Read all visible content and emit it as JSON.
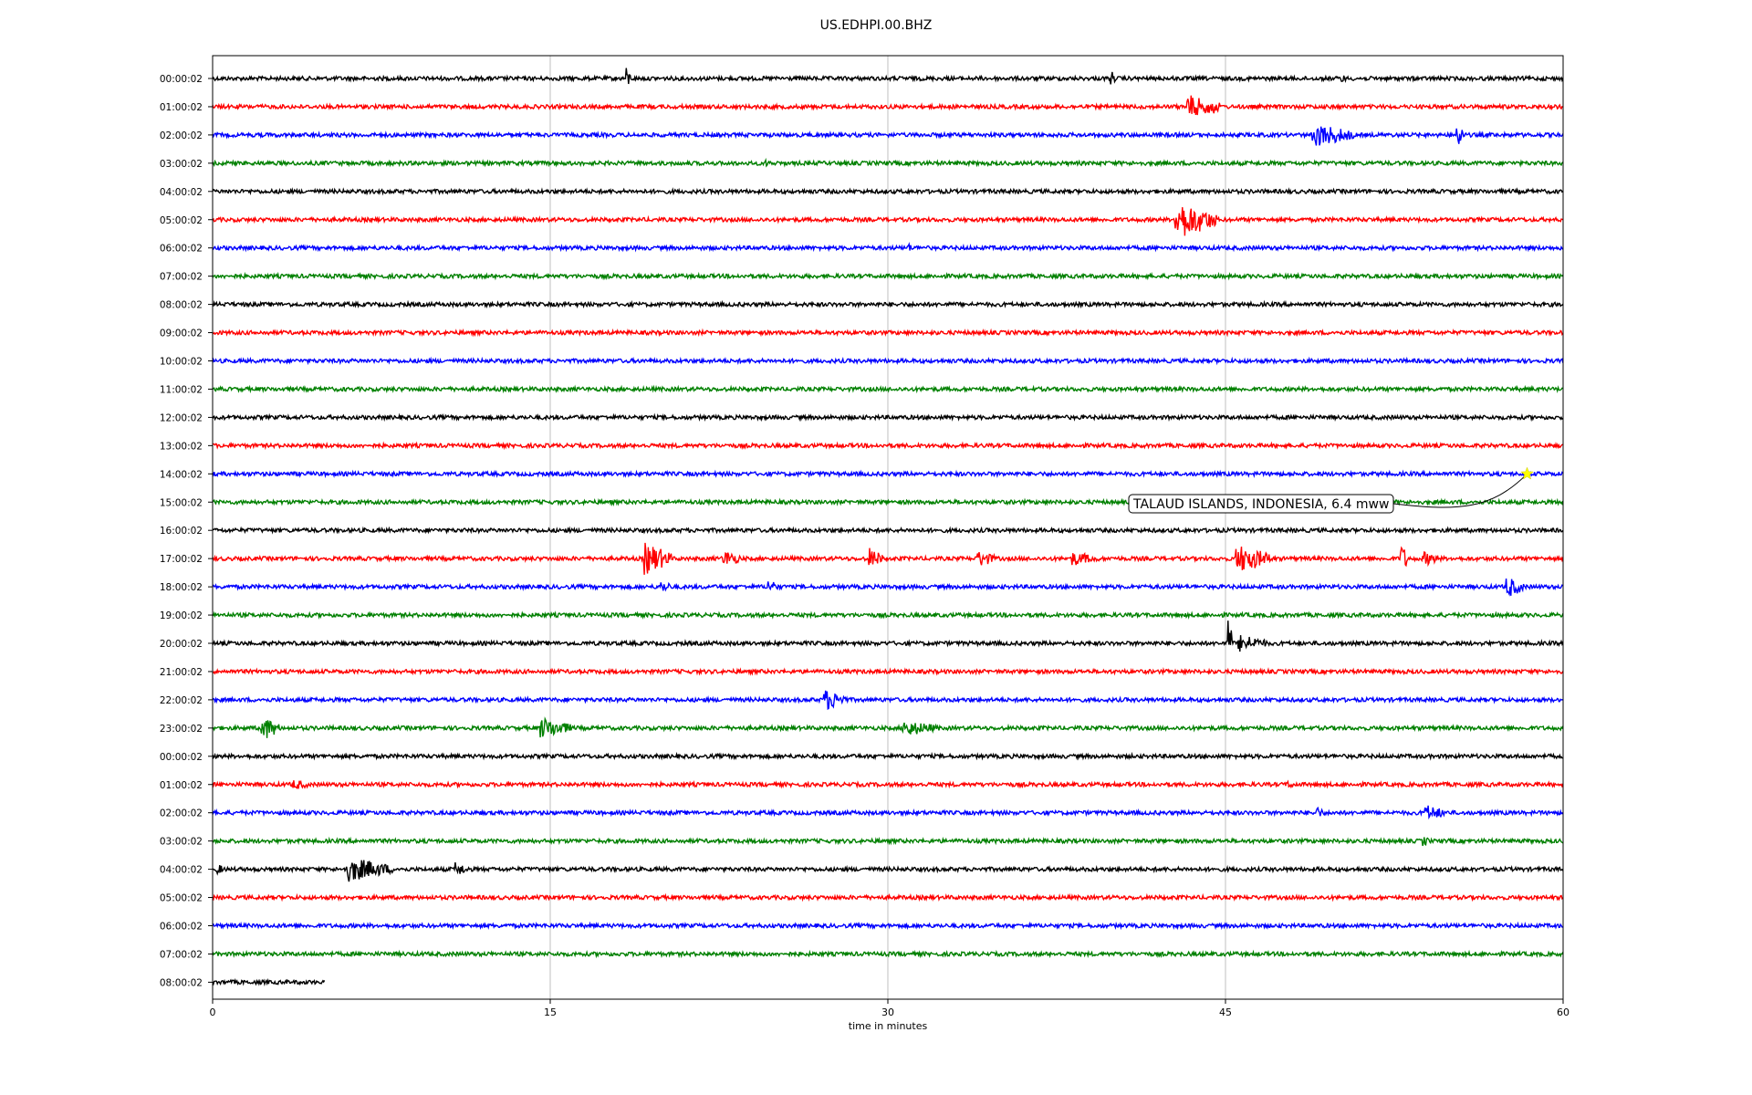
{
  "chart_data": {
    "type": "line",
    "title": "US.EDHPI.00.BHZ",
    "xlabel": "time in minutes",
    "ylabel": "",
    "xlim": [
      0,
      60
    ],
    "xticks": [
      0,
      15,
      30,
      45,
      60
    ],
    "grid": "vertical",
    "row_labels": [
      "00:00:02",
      "01:00:02",
      "02:00:02",
      "03:00:02",
      "04:00:02",
      "05:00:02",
      "06:00:02",
      "07:00:02",
      "08:00:02",
      "09:00:02",
      "10:00:02",
      "11:00:02",
      "12:00:02",
      "13:00:02",
      "14:00:02",
      "15:00:02",
      "16:00:02",
      "17:00:02",
      "18:00:02",
      "19:00:02",
      "20:00:02",
      "21:00:02",
      "22:00:02",
      "23:00:02",
      "00:00:02",
      "01:00:02",
      "02:00:02",
      "03:00:02",
      "04:00:02",
      "05:00:02",
      "06:00:02",
      "07:00:02",
      "08:00:02"
    ],
    "color_cycle": [
      "#000000",
      "#ff0000",
      "#0000ff",
      "#008000"
    ],
    "last_row_end_minutes": 5,
    "events": [
      {
        "row": 0,
        "t": 18.4,
        "dur": 0.2,
        "amp": 12
      },
      {
        "row": 0,
        "t": 39.9,
        "dur": 0.2,
        "amp": 10
      },
      {
        "row": 0,
        "t": 50.2,
        "dur": 0.2,
        "amp": 5
      },
      {
        "row": 1,
        "t": 43.3,
        "dur": 1.2,
        "amp": 14
      },
      {
        "row": 1,
        "t": 44.3,
        "dur": 0.5,
        "amp": 11
      },
      {
        "row": 2,
        "t": 48.9,
        "dur": 1.8,
        "amp": 14
      },
      {
        "row": 2,
        "t": 55.3,
        "dur": 0.3,
        "amp": 16
      },
      {
        "row": 3,
        "t": 24.6,
        "dur": 0.4,
        "amp": 4
      },
      {
        "row": 5,
        "t": 42.8,
        "dur": 1.8,
        "amp": 22
      },
      {
        "row": 6,
        "t": 30.9,
        "dur": 0.3,
        "amp": 5
      },
      {
        "row": 17,
        "t": 19.2,
        "dur": 1.2,
        "amp": 18
      },
      {
        "row": 17,
        "t": 22.7,
        "dur": 0.8,
        "amp": 10
      },
      {
        "row": 17,
        "t": 29.2,
        "dur": 0.6,
        "amp": 12
      },
      {
        "row": 17,
        "t": 34.0,
        "dur": 0.8,
        "amp": 10
      },
      {
        "row": 17,
        "t": 38.2,
        "dur": 1.2,
        "amp": 8
      },
      {
        "row": 17,
        "t": 45.5,
        "dur": 1.6,
        "amp": 16
      },
      {
        "row": 17,
        "t": 52.8,
        "dur": 0.3,
        "amp": 18
      },
      {
        "row": 17,
        "t": 53.8,
        "dur": 0.8,
        "amp": 8
      },
      {
        "row": 18,
        "t": 19.9,
        "dur": 0.6,
        "amp": 7
      },
      {
        "row": 18,
        "t": 24.7,
        "dur": 0.5,
        "amp": 8
      },
      {
        "row": 18,
        "t": 57.5,
        "dur": 0.8,
        "amp": 12
      },
      {
        "row": 20,
        "t": 45.1,
        "dur": 0.2,
        "amp": 34
      },
      {
        "row": 20,
        "t": 45.6,
        "dur": 1.3,
        "amp": 10
      },
      {
        "row": 22,
        "t": 27.2,
        "dur": 1.0,
        "amp": 12
      },
      {
        "row": 23,
        "t": 2.2,
        "dur": 0.8,
        "amp": 14
      },
      {
        "row": 23,
        "t": 14.6,
        "dur": 1.4,
        "amp": 12
      },
      {
        "row": 23,
        "t": 30.7,
        "dur": 1.6,
        "amp": 9
      },
      {
        "row": 25,
        "t": 3.6,
        "dur": 0.8,
        "amp": 6
      },
      {
        "row": 25,
        "t": 47.8,
        "dur": 0.3,
        "amp": 5
      },
      {
        "row": 26,
        "t": 49.0,
        "dur": 0.4,
        "amp": 8
      },
      {
        "row": 26,
        "t": 53.9,
        "dur": 1.0,
        "amp": 9
      },
      {
        "row": 27,
        "t": 53.8,
        "dur": 0.3,
        "amp": 6
      },
      {
        "row": 28,
        "t": 0.2,
        "dur": 0.4,
        "amp": 6
      },
      {
        "row": 28,
        "t": 6.0,
        "dur": 2.0,
        "amp": 14
      },
      {
        "row": 28,
        "t": 10.8,
        "dur": 0.6,
        "amp": 8
      }
    ],
    "annotation": {
      "text": "TALAUD ISLANDS, INDONESIA, 6.4 mww",
      "row": 14,
      "t": 58.4,
      "marker": "star",
      "marker_color": "#ffff00"
    }
  }
}
